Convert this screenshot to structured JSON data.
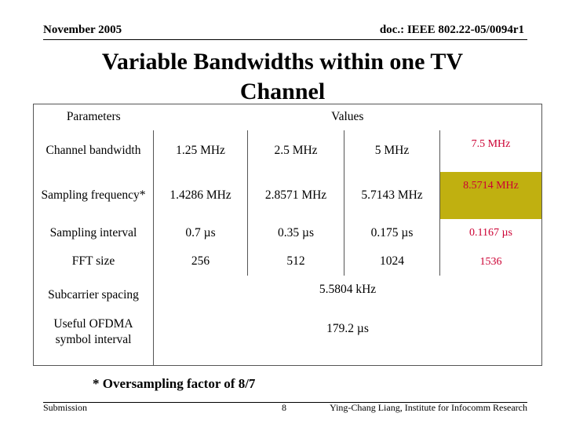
{
  "header": {
    "date": "November 2005",
    "doc": "doc.: IEEE 802.22-05/0094r1"
  },
  "title": "Variable Bandwidths within one TV Channel",
  "table": {
    "columns": [
      "Parameters",
      "Values"
    ],
    "rows": [
      [
        "Channel bandwidth",
        "1.25 MHz",
        "2.5 MHz",
        "5 MHz",
        "7.5 MHz"
      ],
      [
        "Sampling frequency*",
        "1.4286 MHz",
        "2.8571 MHz",
        "5.7143 MHz",
        "8.5714 MHz"
      ],
      [
        "Sampling interval",
        "0.7 µs",
        "0.35 µs",
        "0.175 µs",
        "0.1167 µs"
      ],
      [
        "FFT size",
        "256",
        "512",
        "1024",
        "1536"
      ],
      [
        "Subcarrier spacing",
        "5.5804 kHz"
      ],
      [
        "Useful OFDMA symbol interval",
        "179.2 µs"
      ]
    ]
  },
  "footnote": "* Oversampling factor of 8/7",
  "footer": {
    "left": "Submission",
    "page": "8",
    "author": "Ying-Chang Liang, Institute for Infocomm Research"
  }
}
